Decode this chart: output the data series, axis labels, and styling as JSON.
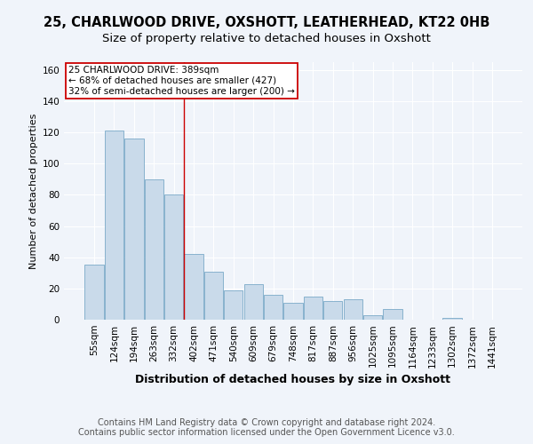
{
  "title_line1": "25, CHARLWOOD DRIVE, OXSHOTT, LEATHERHEAD, KT22 0HB",
  "title_line2": "Size of property relative to detached houses in Oxshott",
  "xlabel": "Distribution of detached houses by size in Oxshott",
  "ylabel": "Number of detached properties",
  "footer_line1": "Contains HM Land Registry data © Crown copyright and database right 2024.",
  "footer_line2": "Contains public sector information licensed under the Open Government Licence v3.0.",
  "categories": [
    "55sqm",
    "124sqm",
    "194sqm",
    "263sqm",
    "332sqm",
    "402sqm",
    "471sqm",
    "540sqm",
    "609sqm",
    "679sqm",
    "748sqm",
    "817sqm",
    "887sqm",
    "956sqm",
    "1025sqm",
    "1095sqm",
    "1164sqm",
    "1233sqm",
    "1302sqm",
    "1372sqm",
    "1441sqm"
  ],
  "values": [
    35,
    121,
    116,
    90,
    80,
    42,
    31,
    19,
    23,
    16,
    11,
    15,
    12,
    13,
    3,
    7,
    0,
    0,
    1,
    0,
    0
  ],
  "bar_color": "#c9daea",
  "bar_edge_color": "#7aaac8",
  "annotation_box_text": "25 CHARLWOOD DRIVE: 389sqm\n← 68% of detached houses are smaller (427)\n32% of semi-detached houses are larger (200) →",
  "vline_index": 4.5,
  "vline_color": "#cc0000",
  "ylim": [
    0,
    165
  ],
  "yticks": [
    0,
    20,
    40,
    60,
    80,
    100,
    120,
    140,
    160
  ],
  "title_fontsize": 10.5,
  "subtitle_fontsize": 9.5,
  "xlabel_fontsize": 9,
  "ylabel_fontsize": 8,
  "tick_fontsize": 7.5,
  "annot_fontsize": 7.5,
  "footer_fontsize": 7,
  "background_color": "#f0f4fa"
}
